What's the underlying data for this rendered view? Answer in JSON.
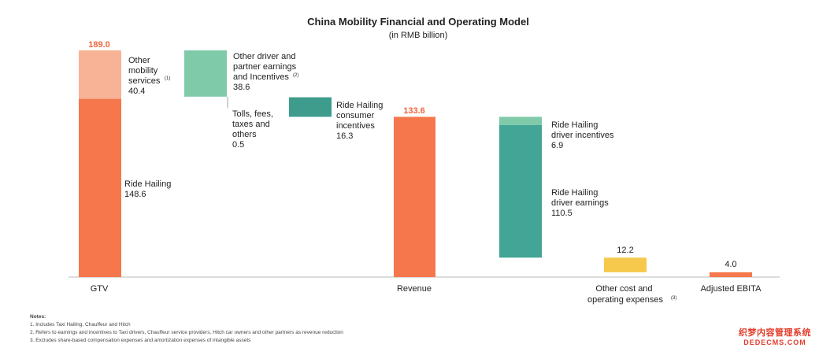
{
  "title": "China Mobility Financial and Operating Model",
  "subtitle": "(in RMB billion)",
  "chart_data": {
    "type": "bar",
    "subtype": "waterfall",
    "title": "China Mobility Financial and Operating Model",
    "subtitle": "(in RMB billion)",
    "grid": false,
    "categories": [
      "GTV",
      "Revenue",
      "Other cost and operating expenses",
      "Adjusted EBITA"
    ],
    "totals": [
      {
        "name": "GTV",
        "value": 189.0
      },
      {
        "name": "Revenue",
        "value": 133.6
      },
      {
        "name": "Adjusted EBITA",
        "value": 4.0
      }
    ],
    "segments": [
      {
        "name": "Ride Hailing",
        "value": 148.6,
        "group": "GTV"
      },
      {
        "name": "Other mobility services",
        "note": "(1)",
        "value": 40.4,
        "group": "GTV"
      },
      {
        "name": "Other driver and partner earnings and Incentives",
        "note": "(2)",
        "value": 38.6,
        "kind": "decrease"
      },
      {
        "name": "Tolls, fees, taxes and others",
        "value": 0.5,
        "kind": "decrease"
      },
      {
        "name": "Ride Hailing consumer incentives",
        "value": 16.3,
        "kind": "decrease"
      },
      {
        "name": "Ride Hailing driver incentives",
        "value": 6.9,
        "kind": "decrease"
      },
      {
        "name": "Ride Hailing driver earnings",
        "value": 110.5,
        "kind": "decrease"
      },
      {
        "name": "Other cost and operating expenses",
        "note": "(3)",
        "value": 12.2,
        "kind": "decrease"
      }
    ],
    "value_labels": [
      "189.0",
      "133.6",
      "12.2",
      "4.0"
    ],
    "colors": {
      "ride_hailing": "#f5774b",
      "other_mobility": "#f8b296",
      "other_driver": "#7fcaa9",
      "consumer_incentives": "#3e9c8c",
      "driver_incentives": "#7fcaa9",
      "driver_earnings": "#43a596",
      "other_cost": "#f6c84c",
      "ebita": "#f5774b",
      "total_label": "#f0663b"
    }
  },
  "labels": {
    "other_mobility": [
      "Other",
      "mobility",
      "services",
      "40.4"
    ],
    "other_mobility_note": "(1)",
    "other_driver": [
      "Other driver and",
      "partner earnings",
      "and Incentives",
      "38.6"
    ],
    "other_driver_note": "(2)",
    "tolls": [
      "Tolls, fees,",
      "taxes and",
      "others",
      "0.5"
    ],
    "consumer": [
      "Ride Hailing",
      "consumer",
      "incentives",
      "16.3"
    ],
    "ride_hailing": [
      "Ride Hailing",
      "148.6"
    ],
    "driver_incentives": [
      "Ride Hailing",
      "driver incentives",
      "6.9"
    ],
    "driver_earnings": [
      "Ride Hailing",
      "driver earnings",
      "110.5"
    ]
  },
  "axis": {
    "gtv": "GTV",
    "revenue": "Revenue",
    "other_cost": [
      "Other cost and",
      "operating expenses"
    ],
    "other_cost_note": "(3)",
    "ebita": "Adjusted EBITA"
  },
  "notes": {
    "heading": "Notes:",
    "items": [
      "1. Includes Taxi Hailing, Chauffeur and Hitch",
      "2. Refers to earnings and incentives to Taxi drivers, Chauffeur service providers, Hitch car owners and other partners as revenue reduction",
      "3. Excludes share-based compensation expenses and amortization expenses of intangible assets"
    ]
  },
  "watermark": {
    "line1": "织梦内容管理系统",
    "line2": "DEDECMS.COM"
  }
}
